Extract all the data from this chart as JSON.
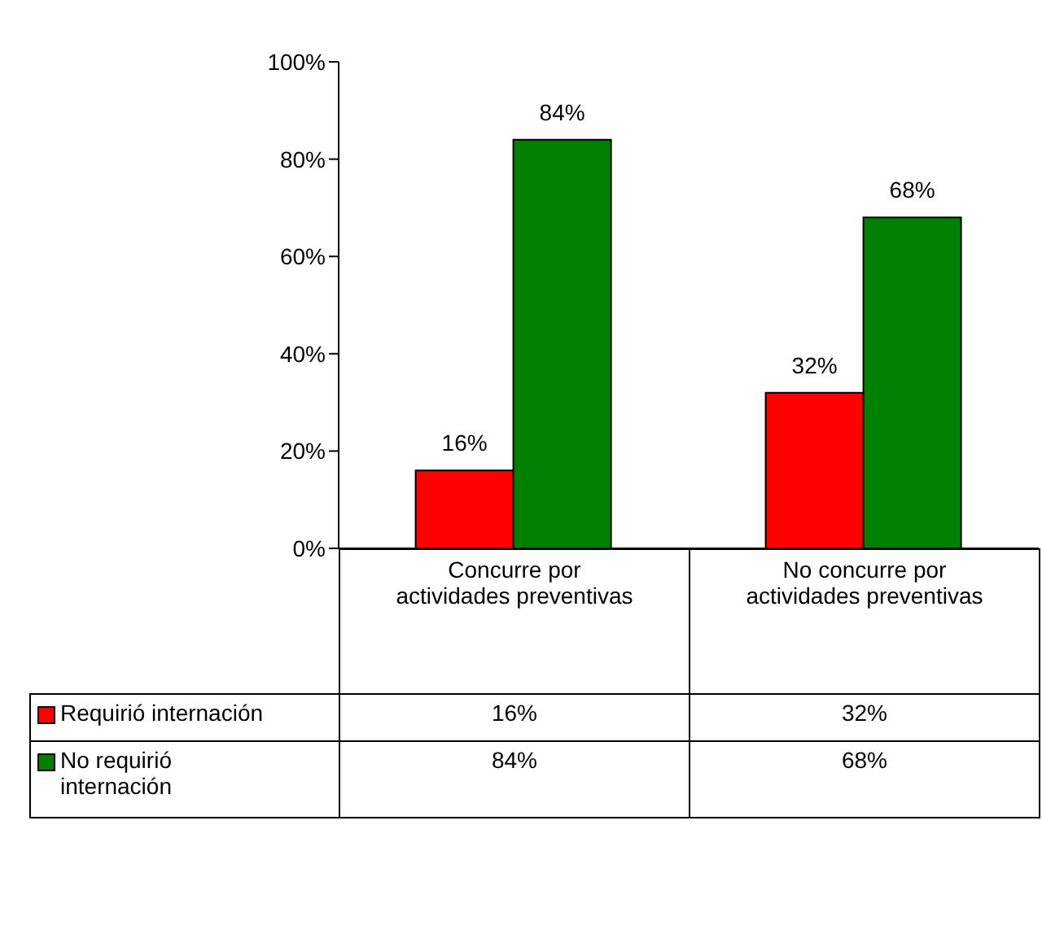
{
  "chart_data": {
    "type": "bar",
    "categories": [
      "Concurre por actividades preventivas",
      "No concurre por actividades preventivas"
    ],
    "series": [
      {
        "name": "Requirió internación",
        "color": "#ff0000",
        "values": [
          16,
          32
        ],
        "value_labels": [
          "16%",
          "32%"
        ]
      },
      {
        "name": "No requirió internación",
        "color": "#008000",
        "values": [
          84,
          68
        ],
        "value_labels": [
          "84%",
          "68%"
        ]
      }
    ],
    "ylim": [
      0,
      100
    ],
    "yticks": [
      {
        "value": 0,
        "label": "0%"
      },
      {
        "value": 20,
        "label": "20%"
      },
      {
        "value": 40,
        "label": "40%"
      },
      {
        "value": 60,
        "label": "60%"
      },
      {
        "value": 80,
        "label": "80%"
      },
      {
        "value": 100,
        "label": "100%"
      }
    ],
    "grid": false,
    "legend": "bottom left"
  }
}
